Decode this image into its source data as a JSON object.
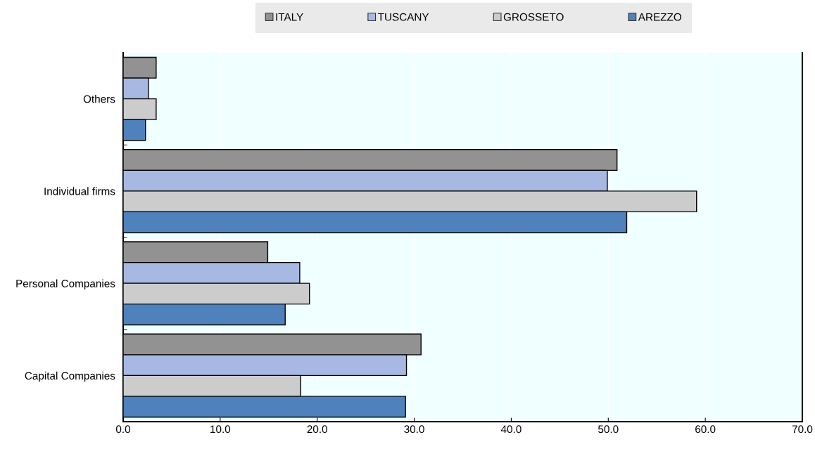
{
  "chart_data": {
    "type": "bar",
    "orientation": "horizontal",
    "categories": [
      "Others",
      "Individual firms",
      "Personal Companies",
      "Capital Companies"
    ],
    "series": [
      {
        "name": "ITALY",
        "color": "#929292",
        "values": [
          3.4,
          50.9,
          14.9,
          30.7
        ]
      },
      {
        "name": "TUSCANY",
        "color": "#a7b9e3",
        "values": [
          2.6,
          49.9,
          18.2,
          29.2
        ]
      },
      {
        "name": "GROSSETO",
        "color": "#cccccc",
        "values": [
          3.4,
          59.1,
          19.2,
          18.3
        ]
      },
      {
        "name": "AREZZO",
        "color": "#4f81bd",
        "values": [
          2.3,
          51.9,
          16.7,
          29.1
        ]
      }
    ],
    "xlim": [
      0,
      70
    ],
    "xticks": [
      {
        "value": 0,
        "label": "0.0"
      },
      {
        "value": 10,
        "label": "10.0"
      },
      {
        "value": 20,
        "label": "20.0"
      },
      {
        "value": 30,
        "label": "30.0"
      },
      {
        "value": 40,
        "label": "40.0"
      },
      {
        "value": 50,
        "label": "50.0"
      },
      {
        "value": 60,
        "label": "60.0"
      },
      {
        "value": 70,
        "label": "70.0"
      }
    ],
    "grid": "x",
    "legend": "top"
  }
}
